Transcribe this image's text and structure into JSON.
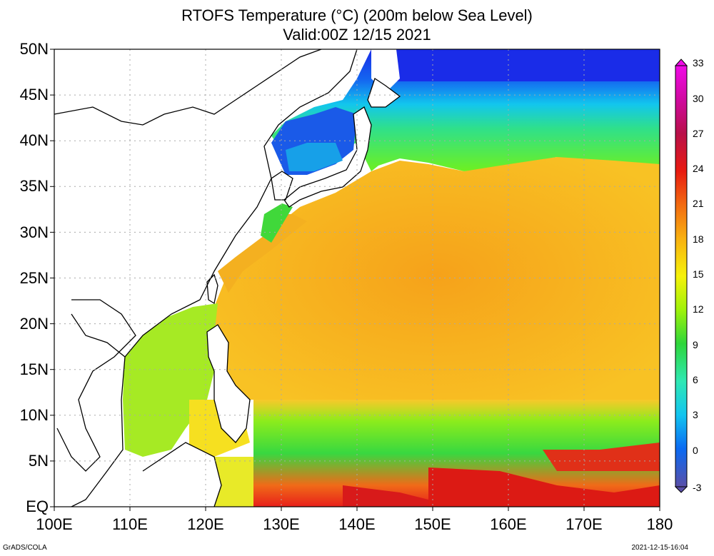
{
  "title": "RTOFS Temperature (°C) (200m below Sea Level)",
  "subtitle": "Valid:00Z 12/15 2021",
  "footer_left": "GrADS/COLA",
  "footer_right": "2021-12-15-16:04",
  "axes": {
    "lat_labels": [
      "50N",
      "45N",
      "40N",
      "35N",
      "30N",
      "25N",
      "20N",
      "15N",
      "10N",
      "5N",
      "EQ"
    ],
    "lon_labels": [
      "100E",
      "110E",
      "120E",
      "130E",
      "140E",
      "150E",
      "160E",
      "170E",
      "180"
    ]
  },
  "colorbar": {
    "ticks": [
      "33",
      "30",
      "27",
      "24",
      "21",
      "18",
      "15",
      "12",
      "9",
      "6",
      "3",
      "0",
      "-3"
    ],
    "colors": [
      "#5a4fa8",
      "#1e2be0",
      "#0b6af2",
      "#12c4f0",
      "#2fe8b4",
      "#2ed63a",
      "#9ff20a",
      "#f6f20a",
      "#f8b010",
      "#f26a10",
      "#e81a10",
      "#b8104a",
      "#d00aa0",
      "#f00ae8"
    ]
  },
  "chart_data": {
    "type": "heatmap",
    "variable": "RTOFS Temperature (°C) (200m below Sea Level)",
    "valid": "Valid:00Z 12/15 2021",
    "lat_range": [
      0,
      50
    ],
    "lon_range": [
      100,
      180
    ],
    "color_range": [
      -3,
      33
    ],
    "grid": "dotted"
  }
}
